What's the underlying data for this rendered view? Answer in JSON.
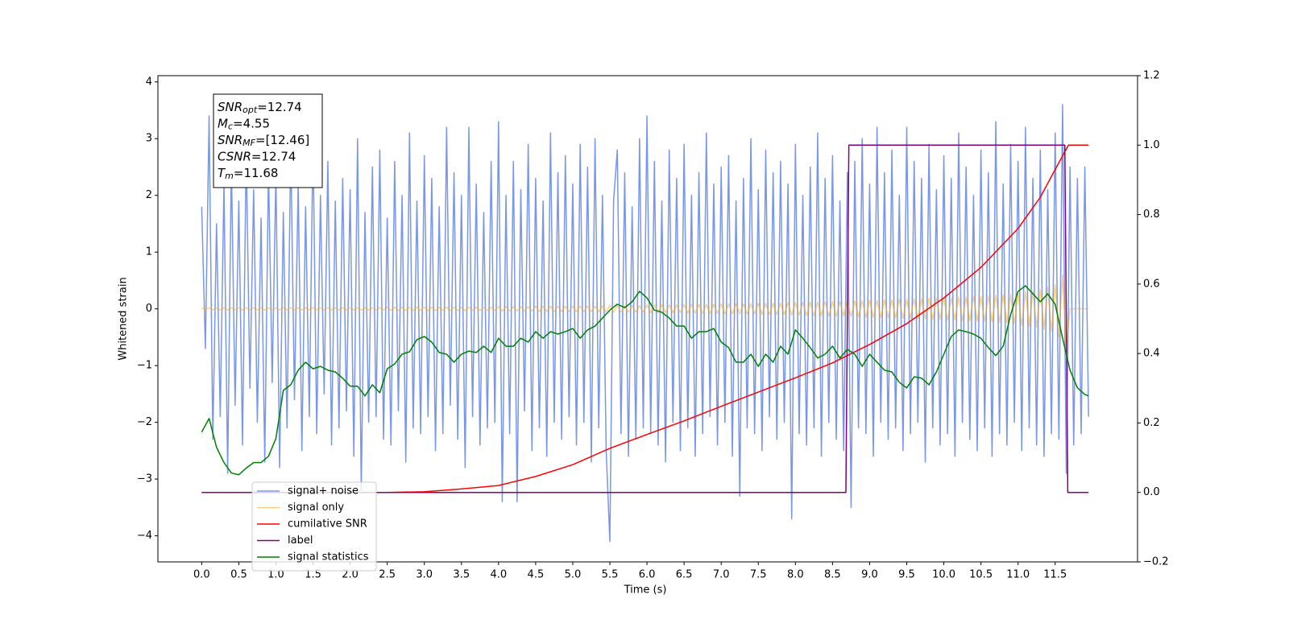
{
  "chart_data": {
    "type": "line",
    "xlabel": "Time (s)",
    "ylabel": "Whitened strain",
    "xlim": [
      -0.59,
      12.61
    ],
    "ylim": [
      -4.46,
      4.11
    ],
    "y2lim": [
      -0.2,
      1.2
    ],
    "xticks": [
      {
        "value": 0,
        "label": "0.0"
      },
      0.5,
      {
        "value": 1,
        "label": "1.0"
      },
      1.5,
      {
        "value": 2,
        "label": "2.0"
      },
      2.5,
      {
        "value": 3,
        "label": "3.0"
      },
      3.5,
      {
        "value": 4,
        "label": "4.0"
      },
      4.5,
      {
        "value": 5,
        "label": "5.0"
      },
      5.5,
      {
        "value": 6,
        "label": "6.0"
      },
      6.5,
      {
        "value": 7,
        "label": "7.0"
      },
      7.5,
      {
        "value": 8,
        "label": "8.0"
      },
      8.5,
      {
        "value": 9,
        "label": "9.0"
      },
      9.5,
      {
        "value": 10,
        "label": "10.0"
      },
      10.5,
      {
        "value": 11,
        "label": "11.0"
      },
      11.5
    ],
    "yticks": [
      {
        "value": -4,
        "label": "−4"
      },
      {
        "value": -3,
        "label": "−3"
      },
      {
        "value": -2,
        "label": "−2"
      },
      {
        "value": -1,
        "label": "−1"
      },
      0,
      1,
      2,
      3,
      4
    ],
    "y2ticks": [
      {
        "value": -0.2,
        "label": "−0.2"
      },
      {
        "value": 0,
        "label": "0.0"
      },
      0.2,
      0.4,
      0.6,
      0.8,
      {
        "value": 1,
        "label": "1.0"
      },
      1.2
    ],
    "legend": "lower left",
    "annotation": [
      {
        "main": "SNR",
        "sub": "opt",
        "rest": "=12.74"
      },
      {
        "main": "M",
        "sub": "c",
        "rest": "=4.55"
      },
      {
        "main": "SNR",
        "sub": "MF",
        "rest": "=[12.46]"
      },
      {
        "main": "CSNR",
        "sub": "",
        "rest": "=12.74"
      },
      {
        "main": "T",
        "sub": "m",
        "rest": "=11.68"
      }
    ],
    "x": [
      0,
      0.05,
      0.1,
      0.15,
      0.2,
      0.25,
      0.3,
      0.35,
      0.4,
      0.45,
      0.5,
      0.55,
      0.6,
      0.65,
      0.7,
      0.75,
      0.8,
      0.85,
      0.9,
      0.95,
      1,
      1.05,
      1.1,
      1.15,
      1.2,
      1.25,
      1.3,
      1.35,
      1.4,
      1.45,
      1.5,
      1.55,
      1.6,
      1.65,
      1.7,
      1.75,
      1.8,
      1.85,
      1.9,
      1.95,
      2,
      2.05,
      2.1,
      2.15,
      2.2,
      2.25,
      2.3,
      2.35,
      2.4,
      2.45,
      2.5,
      2.55,
      2.6,
      2.65,
      2.7,
      2.75,
      2.8,
      2.85,
      2.9,
      2.95,
      3,
      3.05,
      3.1,
      3.15,
      3.2,
      3.25,
      3.3,
      3.35,
      3.4,
      3.45,
      3.5,
      3.55,
      3.6,
      3.65,
      3.7,
      3.75,
      3.8,
      3.85,
      3.9,
      3.95,
      4,
      4.05,
      4.1,
      4.15,
      4.2,
      4.25,
      4.3,
      4.35,
      4.4,
      4.45,
      4.5,
      4.55,
      4.6,
      4.65,
      4.7,
      4.75,
      4.8,
      4.85,
      4.9,
      4.95,
      5,
      5.05,
      5.1,
      5.15,
      5.2,
      5.25,
      5.3,
      5.35,
      5.4,
      5.45,
      5.5,
      5.55,
      5.6,
      5.65,
      5.7,
      5.75,
      5.8,
      5.85,
      5.9,
      5.95,
      6,
      6.05,
      6.1,
      6.15,
      6.2,
      6.25,
      6.3,
      6.35,
      6.4,
      6.45,
      6.5,
      6.55,
      6.6,
      6.65,
      6.7,
      6.75,
      6.8,
      6.85,
      6.9,
      6.95,
      7,
      7.05,
      7.1,
      7.15,
      7.2,
      7.25,
      7.3,
      7.35,
      7.4,
      7.45,
      7.5,
      7.55,
      7.6,
      7.65,
      7.7,
      7.75,
      7.8,
      7.85,
      7.9,
      7.95,
      8,
      8.05,
      8.1,
      8.15,
      8.2,
      8.25,
      8.3,
      8.35,
      8.4,
      8.45,
      8.5,
      8.55,
      8.6,
      8.65,
      8.7,
      8.75,
      8.8,
      8.85,
      8.9,
      8.95,
      9,
      9.05,
      9.1,
      9.15,
      9.2,
      9.25,
      9.3,
      9.35,
      9.4,
      9.45,
      9.5,
      9.55,
      9.6,
      9.65,
      9.7,
      9.75,
      9.8,
      9.85,
      9.9,
      9.95,
      10,
      10.05,
      10.1,
      10.15,
      10.2,
      10.25,
      10.3,
      10.35,
      10.4,
      10.45,
      10.5,
      10.55,
      10.6,
      10.65,
      10.7,
      10.75,
      10.8,
      10.85,
      10.9,
      10.95,
      11,
      11.05,
      11.1,
      11.15,
      11.2,
      11.25,
      11.3,
      11.35,
      11.4,
      11.45,
      11.5,
      11.55,
      11.6,
      11.65,
      11.7,
      11.75,
      11.8,
      11.85,
      11.9,
      11.95
    ],
    "series": [
      {
        "name": "signal+ noise",
        "color": "#4169e1",
        "alpha": 0.7,
        "values": [
          1.8,
          -0.7,
          3.4,
          -2.3,
          1.5,
          -1.9,
          2.2,
          -2.9,
          2.6,
          -1.7,
          1.9,
          -2.4,
          2.8,
          -1.4,
          2.1,
          -2.0,
          1.6,
          -2.7,
          2.5,
          -1.3,
          2.4,
          -2.8,
          1.7,
          -2.1,
          2.9,
          -1.6,
          2.2,
          -2.5,
          1.8,
          -1.9,
          3.0,
          -2.2,
          2.0,
          -1.5,
          2.6,
          -2.4,
          1.9,
          -2.1,
          2.3,
          -1.8,
          2.1,
          -2.6,
          3.0,
          -3.2,
          1.7,
          -2.0,
          2.5,
          -1.9,
          2.8,
          -2.3,
          1.6,
          -2.4,
          2.6,
          -1.8,
          2.0,
          -2.7,
          3.1,
          -2.1,
          1.9,
          -2.2,
          2.7,
          -1.9,
          2.3,
          -2.5,
          1.8,
          -2.2,
          3.2,
          -1.7,
          2.4,
          -2.3,
          2.0,
          -2.8,
          3.2,
          -1.9,
          2.2,
          -2.4,
          1.7,
          -2.1,
          2.6,
          -2.0,
          3.3,
          -3.4,
          2.0,
          -2.2,
          2.6,
          -3.4,
          2.1,
          -1.8,
          2.9,
          -2.5,
          2.3,
          -2.1,
          1.9,
          -2.6,
          3.1,
          -2.0,
          2.4,
          -2.3,
          2.7,
          -1.9,
          2.2,
          -2.4,
          2.9,
          -2.0,
          2.5,
          -2.7,
          3.0,
          -2.1,
          2.0,
          -2.5,
          -4.1,
          1.9,
          2.8,
          -2.2,
          2.4,
          -2.6,
          1.8,
          -2.3,
          3.0,
          -2.1,
          3.4,
          -2.2,
          2.6,
          -2.4,
          1.9,
          -2.7,
          2.8,
          -2.0,
          2.3,
          -2.5,
          2.9,
          -2.1,
          2.0,
          -2.6,
          2.4,
          -2.2,
          3.1,
          -1.9,
          2.2,
          -2.4,
          2.5,
          -2.0,
          2.7,
          -2.6,
          1.9,
          -3.3,
          2.3,
          -2.1,
          3.0,
          -2.2,
          2.1,
          -2.5,
          2.8,
          -1.9,
          2.4,
          -2.3,
          2.6,
          -2.0,
          2.2,
          -3.7,
          2.9,
          -2.2,
          2.0,
          -2.4,
          2.5,
          -2.1,
          3.1,
          -2.6,
          2.3,
          -2.0,
          2.7,
          -2.3,
          1.9,
          -2.5,
          2.4,
          -3.5,
          2.6,
          -2.1,
          3.0,
          -2.2,
          2.2,
          -2.6,
          3.2,
          -2.0,
          2.4,
          -2.3,
          2.8,
          -2.1,
          2.0,
          -2.5,
          3.2,
          -2.2,
          2.6,
          -2.0,
          2.3,
          -2.7,
          2.9,
          -2.1,
          2.1,
          -2.4,
          2.7,
          -2.2,
          2.3,
          -2.6,
          3.1,
          -2.0,
          2.5,
          -2.3,
          2.0,
          -2.5,
          2.8,
          -2.1,
          2.4,
          -2.6,
          3.3,
          -2.2,
          2.2,
          -2.4,
          2.9,
          -2.0,
          2.6,
          -2.5,
          3.2,
          -2.1,
          2.3,
          -2.4,
          2.8,
          -2.6,
          2.1,
          -2.2,
          3.1,
          -2.3,
          3.6,
          -2.9,
          2.5,
          -2.4,
          2.3,
          -2.2,
          2.5,
          -1.9
        ]
      },
      {
        "name": "signal only",
        "color": "#ffa500",
        "alpha": 0.5,
        "values": [
          0.02,
          -0.02,
          0.02,
          -0.02,
          0.02,
          -0.02,
          0.02,
          -0.02,
          0.02,
          -0.02,
          0.02,
          -0.02,
          0.02,
          -0.02,
          0.02,
          -0.02,
          0.02,
          -0.02,
          0.02,
          -0.02,
          0.02,
          -0.02,
          0.02,
          -0.02,
          0.02,
          -0.02,
          0.02,
          -0.02,
          0.02,
          -0.02,
          0.02,
          -0.02,
          0.02,
          -0.02,
          0.02,
          -0.02,
          0.02,
          -0.02,
          0.02,
          -0.02,
          0.02,
          -0.02,
          0.02,
          -0.02,
          0.02,
          -0.02,
          0.02,
          -0.02,
          0.02,
          -0.02,
          0.03,
          -0.03,
          0.03,
          -0.03,
          0.03,
          -0.03,
          0.03,
          -0.03,
          0.03,
          -0.03,
          0.03,
          -0.03,
          0.03,
          -0.03,
          0.03,
          -0.03,
          0.03,
          -0.03,
          0.03,
          -0.03,
          0.03,
          -0.03,
          0.03,
          -0.03,
          0.03,
          -0.03,
          0.03,
          -0.03,
          0.03,
          -0.03,
          0.04,
          -0.04,
          0.04,
          -0.04,
          0.04,
          -0.04,
          0.04,
          -0.04,
          0.04,
          -0.04,
          0.05,
          -0.05,
          0.05,
          -0.05,
          0.05,
          -0.05,
          0.05,
          -0.05,
          0.05,
          -0.05,
          0.05,
          -0.05,
          0.05,
          -0.05,
          0.05,
          -0.05,
          0.05,
          -0.05,
          0.05,
          -0.05,
          0.06,
          -0.06,
          0.06,
          -0.06,
          0.06,
          -0.06,
          0.06,
          -0.06,
          0.06,
          -0.06,
          0.07,
          -0.07,
          0.07,
          -0.07,
          0.07,
          -0.07,
          0.07,
          -0.07,
          0.07,
          -0.07,
          0.08,
          -0.08,
          0.08,
          -0.08,
          0.08,
          -0.08,
          0.08,
          -0.08,
          0.08,
          -0.08,
          0.09,
          -0.09,
          0.09,
          -0.09,
          0.09,
          -0.09,
          0.09,
          -0.09,
          0.09,
          -0.09,
          0.1,
          -0.1,
          0.1,
          -0.1,
          0.1,
          -0.1,
          0.1,
          -0.1,
          0.11,
          -0.11,
          0.11,
          -0.11,
          0.12,
          -0.12,
          0.12,
          -0.12,
          0.12,
          -0.12,
          0.13,
          -0.13,
          0.13,
          -0.13,
          0.13,
          -0.13,
          0.14,
          -0.14,
          0.14,
          -0.14,
          0.15,
          -0.15,
          0.15,
          -0.15,
          0.15,
          -0.15,
          0.16,
          -0.16,
          0.16,
          -0.16,
          0.17,
          -0.17,
          0.17,
          -0.17,
          0.18,
          -0.18,
          0.18,
          -0.18,
          0.19,
          -0.19,
          0.19,
          -0.19,
          0.2,
          -0.2,
          0.2,
          -0.2,
          0.21,
          -0.21,
          0.21,
          -0.21,
          0.22,
          -0.22,
          0.22,
          -0.22,
          0.23,
          -0.23,
          0.24,
          -0.24,
          0.25,
          -0.25,
          0.26,
          -0.26,
          0.28,
          -0.29,
          0.3,
          -0.31,
          0.32,
          -0.33,
          0.34,
          -0.36,
          0.38,
          -0.4,
          0.43,
          -0.5,
          0.6,
          -0.7,
          0,
          0,
          0,
          0,
          0,
          0
        ]
      },
      {
        "name": "cumilative SNR",
        "color": "#ff0000",
        "axis": "y2",
        "x": [
          0,
          1,
          2,
          2.5,
          3,
          3.5,
          4,
          4.5,
          5,
          5.5,
          6,
          6.5,
          7,
          7.5,
          8,
          8.5,
          9,
          9.5,
          10,
          10.5,
          11,
          11.3,
          11.5,
          11.68,
          11.95
        ],
        "values": [
          0,
          0,
          0,
          0,
          0.002,
          0.01,
          0.02,
          0.046,
          0.08,
          0.127,
          0.167,
          0.206,
          0.248,
          0.289,
          0.33,
          0.373,
          0.426,
          0.486,
          0.56,
          0.648,
          0.76,
          0.85,
          0.93,
          1,
          1
        ]
      },
      {
        "name": "label",
        "color": "#800080",
        "axis": "y2",
        "x": [
          0,
          8.68,
          8.72,
          11.63,
          11.67,
          11.95
        ],
        "values": [
          0,
          0,
          1,
          1,
          0,
          0
        ]
      },
      {
        "name": "signal statistics",
        "color": "#008000",
        "axis": "y2",
        "x": [
          0,
          0.1,
          0.2,
          0.3,
          0.4,
          0.5,
          0.6,
          0.7,
          0.8,
          0.9,
          1,
          1.1,
          1.2,
          1.3,
          1.4,
          1.5,
          1.6,
          1.7,
          1.8,
          1.9,
          2,
          2.1,
          2.2,
          2.3,
          2.4,
          2.5,
          2.6,
          2.7,
          2.8,
          2.9,
          3,
          3.1,
          3.2,
          3.3,
          3.4,
          3.5,
          3.6,
          3.7,
          3.8,
          3.9,
          4,
          4.1,
          4.2,
          4.3,
          4.4,
          4.5,
          4.6,
          4.7,
          4.8,
          4.9,
          5,
          5.1,
          5.2,
          5.3,
          5.4,
          5.5,
          5.6,
          5.7,
          5.8,
          5.9,
          6,
          6.1,
          6.2,
          6.3,
          6.4,
          6.5,
          6.6,
          6.7,
          6.8,
          6.9,
          7,
          7.1,
          7.2,
          7.3,
          7.4,
          7.5,
          7.6,
          7.7,
          7.8,
          7.9,
          8,
          8.1,
          8.2,
          8.3,
          8.4,
          8.5,
          8.6,
          8.7,
          8.8,
          8.9,
          9,
          9.1,
          9.2,
          9.3,
          9.4,
          9.5,
          9.6,
          9.7,
          9.8,
          9.9,
          10,
          10.1,
          10.2,
          10.3,
          10.4,
          10.5,
          10.6,
          10.7,
          10.8,
          10.9,
          11,
          11.1,
          11.2,
          11.3,
          11.4,
          11.5,
          11.6,
          11.7,
          11.8,
          11.9,
          11.95
        ],
        "values": [
          0.174,
          0.213,
          0.13,
          0.086,
          0.056,
          0.051,
          0.07,
          0.086,
          0.086,
          0.104,
          0.155,
          0.294,
          0.31,
          0.352,
          0.375,
          0.356,
          0.363,
          0.352,
          0.347,
          0.329,
          0.306,
          0.306,
          0.278,
          0.31,
          0.287,
          0.356,
          0.37,
          0.398,
          0.405,
          0.44,
          0.449,
          0.433,
          0.403,
          0.398,
          0.375,
          0.398,
          0.407,
          0.403,
          0.421,
          0.403,
          0.444,
          0.421,
          0.421,
          0.444,
          0.433,
          0.463,
          0.444,
          0.463,
          0.456,
          0.463,
          0.472,
          0.444,
          0.468,
          0.479,
          0.502,
          0.525,
          0.542,
          0.532,
          0.549,
          0.579,
          0.56,
          0.525,
          0.519,
          0.502,
          0.479,
          0.479,
          0.444,
          0.463,
          0.463,
          0.472,
          0.433,
          0.417,
          0.375,
          0.375,
          0.398,
          0.363,
          0.398,
          0.375,
          0.421,
          0.398,
          0.468,
          0.444,
          0.417,
          0.387,
          0.398,
          0.421,
          0.387,
          0.412,
          0.398,
          0.363,
          0.398,
          0.375,
          0.352,
          0.347,
          0.317,
          0.301,
          0.333,
          0.329,
          0.31,
          0.347,
          0.398,
          0.449,
          0.468,
          0.463,
          0.456,
          0.444,
          0.417,
          0.394,
          0.421,
          0.512,
          0.579,
          0.595,
          0.572,
          0.549,
          0.572,
          0.542,
          0.444,
          0.352,
          0.301,
          0.282,
          0.278
        ]
      }
    ]
  }
}
